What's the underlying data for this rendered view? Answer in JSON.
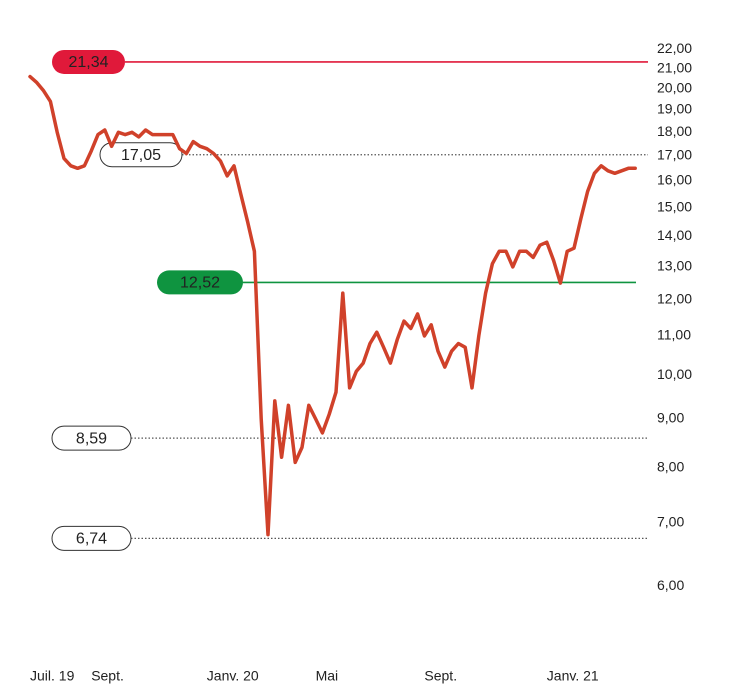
{
  "chart_data": {
    "type": "line",
    "log_scale": true,
    "color": "#d0412a",
    "categories": [
      "Juil. 19",
      null,
      null,
      null,
      null,
      null,
      null,
      null,
      null,
      "Sept.",
      null,
      null,
      null,
      null,
      null,
      null,
      null,
      null,
      null,
      null,
      null,
      null,
      null,
      null,
      null,
      null,
      "Janv. 20",
      null,
      null,
      null,
      null,
      null,
      null,
      null,
      null,
      null,
      null,
      null,
      null,
      null,
      null,
      null,
      "Mai",
      null,
      null,
      null,
      null,
      null,
      null,
      null,
      null,
      null,
      null,
      null,
      null,
      null,
      null,
      null,
      "Sept.",
      null,
      null,
      null,
      null,
      null,
      null,
      null,
      null,
      null,
      null,
      null,
      null,
      null,
      null,
      null,
      null,
      null,
      "Janv. 21",
      null,
      null,
      null,
      null,
      null,
      null,
      null,
      null,
      null,
      null,
      null,
      null,
      null
    ],
    "values": [
      20.6,
      20.3,
      19.9,
      19.4,
      18.0,
      16.9,
      16.6,
      16.5,
      16.6,
      17.2,
      17.9,
      18.1,
      17.4,
      18.0,
      17.9,
      18.0,
      17.8,
      18.1,
      17.9,
      17.9,
      17.9,
      17.9,
      17.3,
      17.1,
      17.6,
      17.4,
      17.3,
      17.1,
      16.8,
      16.2,
      16.6,
      15.5,
      14.5,
      13.5,
      9.0,
      6.8,
      9.4,
      8.2,
      9.3,
      8.1,
      8.4,
      9.3,
      9.0,
      8.7,
      9.1,
      9.6,
      12.2,
      9.7,
      10.1,
      10.3,
      10.8,
      11.1,
      10.7,
      10.3,
      10.9,
      11.4,
      11.2,
      11.6,
      11.0,
      11.3,
      10.6,
      10.2,
      10.6,
      10.8,
      10.7,
      9.7,
      11.0,
      12.2,
      13.1,
      13.5,
      13.5,
      13.0,
      13.5,
      13.5,
      13.3,
      13.7,
      13.8,
      13.2,
      12.5,
      13.5,
      13.6,
      14.6,
      15.6,
      16.3,
      16.6,
      16.4,
      16.3,
      16.4,
      16.5,
      16.5
    ],
    "ylim": [
      5.6,
      23
    ],
    "yticks": [
      {
        "value": 22,
        "label": "22,00"
      },
      {
        "value": 21,
        "label": "21,00"
      },
      {
        "value": 20,
        "label": "20,00"
      },
      {
        "value": 19,
        "label": "19,00"
      },
      {
        "value": 18,
        "label": "18,00"
      },
      {
        "value": 17,
        "label": "17,00"
      },
      {
        "value": 16,
        "label": "16,00"
      },
      {
        "value": 15,
        "label": "15,00"
      },
      {
        "value": 14,
        "label": "14,00"
      },
      {
        "value": 13,
        "label": "13,00"
      },
      {
        "value": 12,
        "label": "12,00"
      },
      {
        "value": 11,
        "label": "11,00"
      },
      {
        "value": 10,
        "label": "10,00"
      },
      {
        "value": 9,
        "label": "9,00"
      },
      {
        "value": 8,
        "label": "8,00"
      },
      {
        "value": 7,
        "label": "7,00"
      },
      {
        "value": 6,
        "label": "6,00"
      }
    ],
    "reference_lines": [
      {
        "value": 21.34,
        "label": "21,34",
        "color": "#e0193a",
        "style": "solid"
      },
      {
        "value": 17.05,
        "label": "17,05",
        "color": "#ffffff",
        "style": "dotted"
      },
      {
        "value": 12.52,
        "label": "12,52",
        "color": "#0f9440",
        "style": "solid"
      },
      {
        "value": 8.59,
        "label": "8,59",
        "color": "#ffffff",
        "style": "dotted"
      },
      {
        "value": 6.74,
        "label": "6,74",
        "color": "#ffffff",
        "style": "dotted"
      }
    ]
  }
}
